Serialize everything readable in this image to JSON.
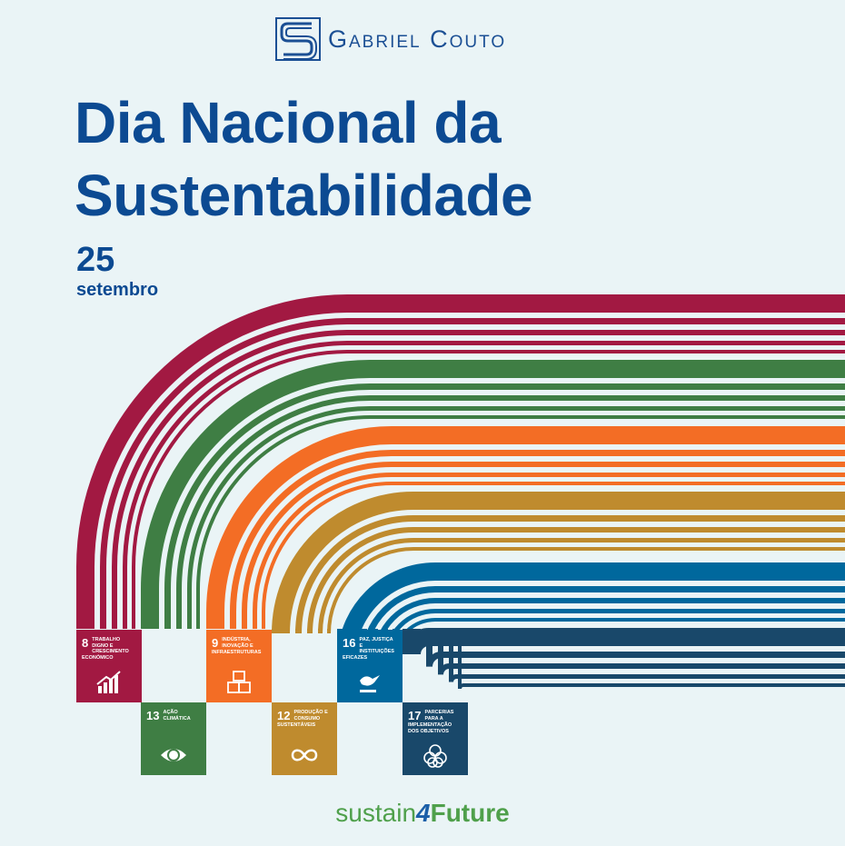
{
  "brand": {
    "name": "Gabriel Couto",
    "logo_icon": "gabriel-couto-logo-icon",
    "color": "#1b4f94"
  },
  "title": {
    "line1": "Dia Nacional da",
    "line2": "Sustentabilidade",
    "color": "#0c4a92"
  },
  "date": {
    "day": "25",
    "month": "setembro"
  },
  "sdgs": [
    {
      "number": "8",
      "label": "Trabalho digno e crescimento económico",
      "color": "#a21942",
      "icon": "growth-chart-icon"
    },
    {
      "number": "13",
      "label": "Ação climática",
      "color": "#3f7e44",
      "icon": "eye-globe-icon"
    },
    {
      "number": "9",
      "label": "Indústria, inovação e infraestruturas",
      "color": "#f36d25",
      "icon": "cubes-icon"
    },
    {
      "number": "12",
      "label": "Produção e consumo sustentáveis",
      "color": "#bf8b2e",
      "icon": "infinity-icon"
    },
    {
      "number": "16",
      "label": "Paz, justiça e instituições eficazes",
      "color": "#00689d",
      "icon": "dove-gavel-icon"
    },
    {
      "number": "17",
      "label": "Parcerias para a implementação dos objetivos",
      "color": "#19486a",
      "icon": "partnership-flower-icon"
    }
  ],
  "footer": {
    "part1": "sustain",
    "part2": "4",
    "part3": "Future"
  }
}
